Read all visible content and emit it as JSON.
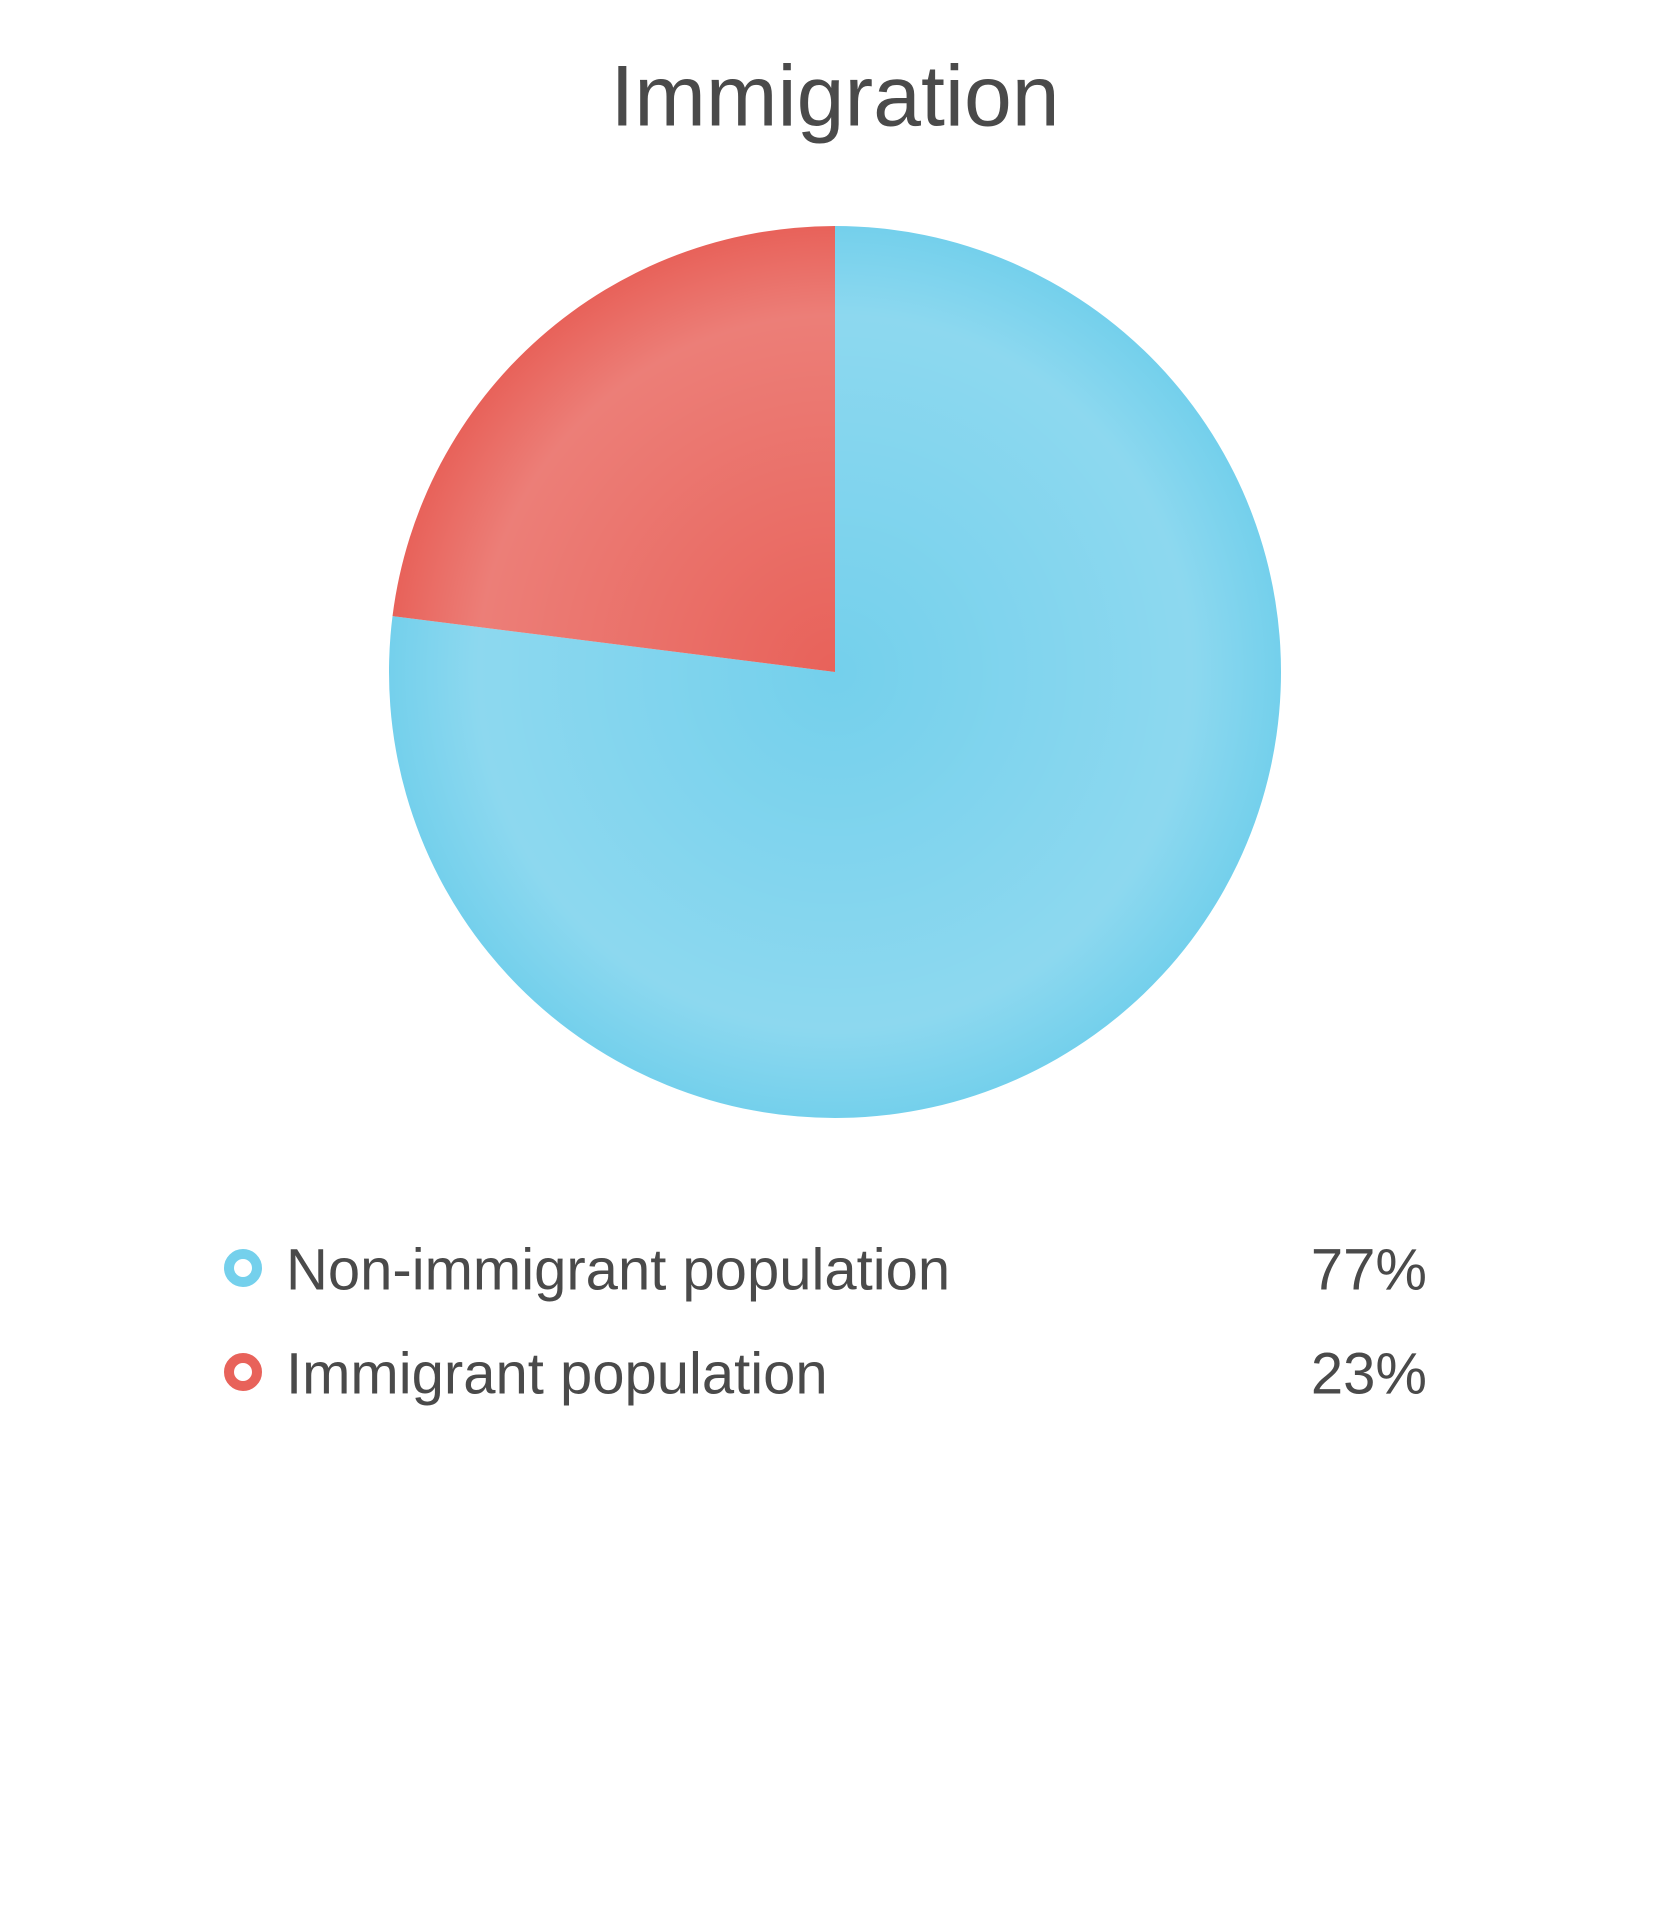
{
  "chart_data": {
    "type": "pie",
    "title": "Immigration",
    "categories": [
      "Non-immigrant population",
      "Immigrant population"
    ],
    "values": [
      77,
      23
    ],
    "value_labels": [
      "77%",
      "23%"
    ],
    "colors": [
      "#74d0ec",
      "#e8625a"
    ]
  }
}
